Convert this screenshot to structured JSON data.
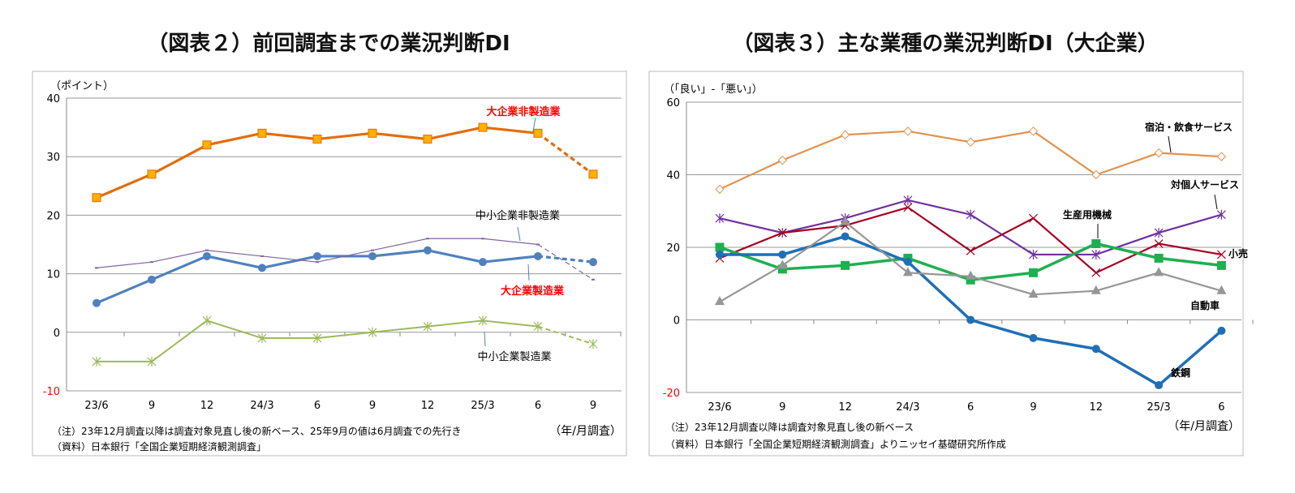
{
  "chart_data": [
    {
      "type": "line",
      "title": "（図表２）前回調査までの業況判断DI",
      "ylabel": "（ポイント）",
      "xlabel": "（年/月調査）",
      "ylim": [
        -10,
        40
      ],
      "yticks": [
        40,
        30,
        20,
        10,
        0,
        -10
      ],
      "categories": [
        "23/6",
        "9",
        "12",
        "24/3",
        "6",
        "9",
        "12",
        "25/3",
        "6",
        "9"
      ],
      "series": [
        {
          "name": "大企業非製造業",
          "color": "#E46C0A",
          "marker": "square",
          "label_color": "#FF0000",
          "values": [
            23,
            27,
            32,
            34,
            33,
            34,
            33,
            35,
            34,
            27
          ],
          "forecast_last": true
        },
        {
          "name": "大企業製造業",
          "color": "#4F81BD",
          "marker": "circle",
          "label_color": "#FF0000",
          "values": [
            5,
            9,
            13,
            11,
            13,
            13,
            14,
            12,
            13,
            12
          ],
          "forecast_last": true
        },
        {
          "name": "中小企業非製造業",
          "color": "#8064A2",
          "marker": "dash",
          "label_color": "#000000",
          "values": [
            11,
            12,
            14,
            13,
            12,
            14,
            16,
            16,
            15,
            9
          ],
          "forecast_last": true
        },
        {
          "name": "中小企業製造業",
          "color": "#9BBB59",
          "marker": "star",
          "label_color": "#000000",
          "values": [
            -5,
            -5,
            2,
            -1,
            -1,
            0,
            1,
            2,
            1,
            -2
          ],
          "forecast_last": true
        }
      ],
      "notes": [
        "（注）23年12月調査以降は調査対象見直し後の新ベース、25年9月の値は6月調査での先行き",
        "（資料）日本銀行「全国企業短期経済観測調査」"
      ]
    },
    {
      "type": "line",
      "title": "（図表３）主な業種の業況判断DI（大企業）",
      "ylabel": "（「良い」-「悪い」）",
      "xlabel": "（年/月調査）",
      "ylim": [
        -20,
        60
      ],
      "yticks": [
        60,
        40,
        20,
        0,
        -20
      ],
      "categories": [
        "23/6",
        "9",
        "12",
        "24/3",
        "6",
        "9",
        "12",
        "25/3",
        "6"
      ],
      "series": [
        {
          "name": "宿泊・飲食サービス",
          "color": "#E0934F",
          "marker": "diamond",
          "values": [
            36,
            44,
            51,
            52,
            49,
            52,
            40,
            46,
            45
          ]
        },
        {
          "name": "対個人サービス",
          "color": "#7030A0",
          "marker": "star",
          "values": [
            28,
            24,
            28,
            33,
            29,
            18,
            18,
            24,
            29
          ]
        },
        {
          "name": "小売",
          "color": "#A50021",
          "marker": "x",
          "values": [
            17,
            24,
            26,
            31,
            19,
            28,
            13,
            21,
            18
          ]
        },
        {
          "name": "生産用機械",
          "color": "#1FAF50",
          "marker": "square",
          "values": [
            20,
            14,
            15,
            17,
            11,
            13,
            21,
            17,
            15
          ]
        },
        {
          "name": "鉄鋼",
          "color": "#1F6FB5",
          "marker": "circle",
          "values": [
            18,
            18,
            23,
            16,
            0,
            -5,
            -8,
            -18,
            -3
          ]
        },
        {
          "name": "自動車",
          "color": "#969696",
          "marker": "triangle",
          "values": [
            5,
            15,
            27,
            13,
            12,
            7,
            8,
            13,
            8
          ]
        }
      ],
      "notes": [
        "（注）23年12月調査以降は調査対象見直し後の新ベース",
        "（資料）日本銀行「全国企業短期経済観測調査」よりニッセイ基礎研究所作成"
      ]
    }
  ]
}
